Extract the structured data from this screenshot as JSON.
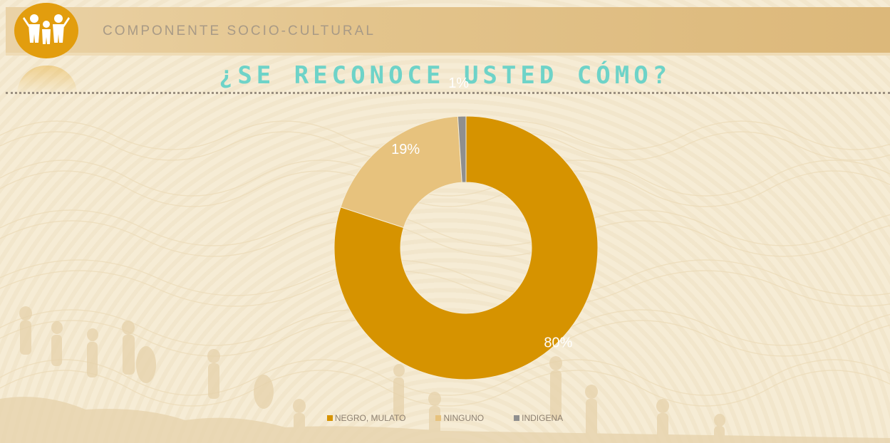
{
  "header": {
    "section_title": "COMPONENTE SOCIO-CULTURAL",
    "logo_icon": "people-group-icon"
  },
  "colors": {
    "accent_gold": "#d69300",
    "accent_light": "#e7c27d",
    "accent_gray": "#8f8f8f",
    "title_teal": "#6ed3c8"
  },
  "chart_data": {
    "type": "pie",
    "variant": "donut",
    "title": "¿SE RECONOCE USTED CÓMO?",
    "legend_position": "bottom",
    "slices": [
      {
        "name": "NEGRO, MULATO",
        "value": 80,
        "label": "80%",
        "color": "#d69300"
      },
      {
        "name": "NINGUNO",
        "value": 19,
        "label": "19%",
        "color": "#e7c27d"
      },
      {
        "name": "INDIGENA",
        "value": 1,
        "label": "1%",
        "color": "#8f8f8f"
      }
    ]
  }
}
